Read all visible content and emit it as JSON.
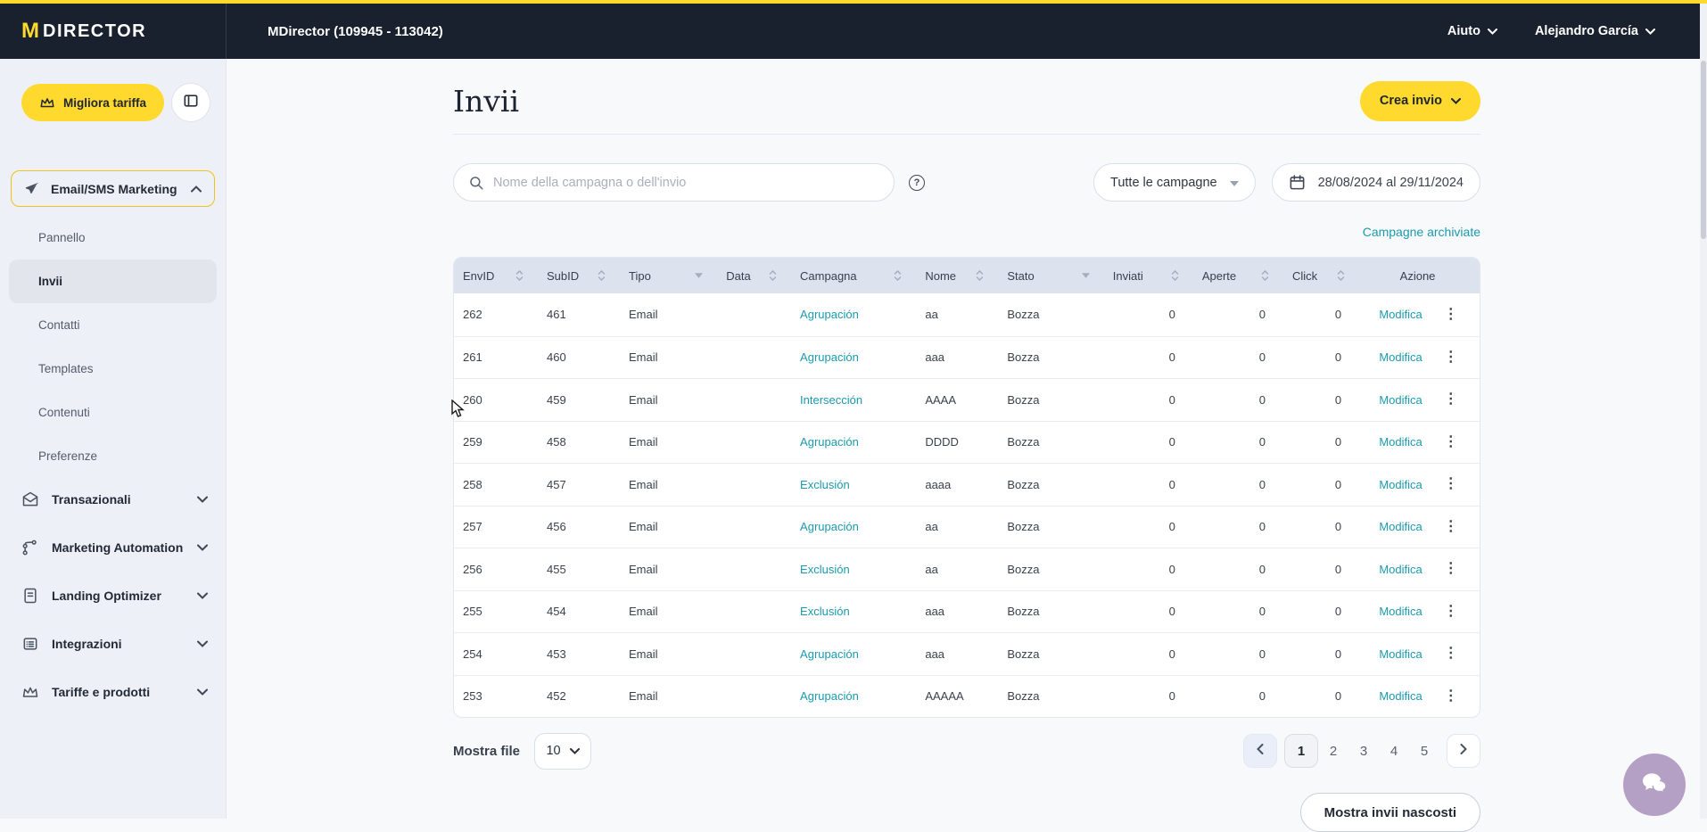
{
  "brand": {
    "logo_m": "M",
    "logo_text": "DIRECTOR"
  },
  "topbar": {
    "account_title": "MDirector (109945 - 113042)",
    "help_label": "Aiuto",
    "user_name": "Alejandro García"
  },
  "sidebar": {
    "upgrade_button": "Migliora tariffa",
    "section_toggle": {
      "label": "Email/SMS Marketing",
      "icon": "paper-plane-icon"
    },
    "items": [
      {
        "label": "Pannello",
        "active": false
      },
      {
        "label": "Invii",
        "active": true
      },
      {
        "label": "Contatti",
        "active": false
      },
      {
        "label": "Templates",
        "active": false
      },
      {
        "label": "Contenuti",
        "active": false
      },
      {
        "label": "Preferenze",
        "active": false
      }
    ],
    "groups": [
      {
        "label": "Transazionali",
        "icon": "envelope-icon"
      },
      {
        "label": "Marketing Automation",
        "icon": "automation-icon"
      },
      {
        "label": "Landing Optimizer",
        "icon": "landing-doc-icon"
      },
      {
        "label": "Integrazioni",
        "icon": "integrations-list-icon"
      },
      {
        "label": "Tariffe e prodotti",
        "icon": "crown-icon"
      }
    ]
  },
  "main": {
    "page_title": "Invii",
    "create_button": "Crea invio",
    "search_placeholder": "Nome della campagna o dell'invio",
    "help_glyph": "?",
    "campaigns_filter": "Tutte le campagne",
    "date_range": "28/08/2024 al  29/11/2024",
    "archived_link": "Campagne archiviate"
  },
  "table": {
    "columns": [
      {
        "label": "EnvID",
        "control": "sort"
      },
      {
        "label": "SubID",
        "control": "sort"
      },
      {
        "label": "Tipo",
        "control": "filter"
      },
      {
        "label": "Data",
        "control": "sort"
      },
      {
        "label": "Campagna",
        "control": "sort"
      },
      {
        "label": "Nome",
        "control": "sort"
      },
      {
        "label": "Stato",
        "control": "filter"
      },
      {
        "label": "Inviati",
        "control": "sort",
        "numeric": true
      },
      {
        "label": "Aperte",
        "control": "sort",
        "numeric": true
      },
      {
        "label": "Click",
        "control": "sort",
        "numeric": true
      },
      {
        "label": "Azione",
        "control": "none",
        "action": true
      }
    ],
    "action_label": "Modifica",
    "rows": [
      {
        "envid": "262",
        "subid": "461",
        "tipo": "Email",
        "data": "",
        "campagna": "Agrupación",
        "nome": "aa",
        "stato": "Bozza",
        "inviati": "0",
        "aperte": "0",
        "click": "0"
      },
      {
        "envid": "261",
        "subid": "460",
        "tipo": "Email",
        "data": "",
        "campagna": "Agrupación",
        "nome": "aaa",
        "stato": "Bozza",
        "inviati": "0",
        "aperte": "0",
        "click": "0"
      },
      {
        "envid": "260",
        "subid": "459",
        "tipo": "Email",
        "data": "",
        "campagna": "Intersección",
        "nome": "AAAA",
        "stato": "Bozza",
        "inviati": "0",
        "aperte": "0",
        "click": "0"
      },
      {
        "envid": "259",
        "subid": "458",
        "tipo": "Email",
        "data": "",
        "campagna": "Agrupación",
        "nome": "DDDD",
        "stato": "Bozza",
        "inviati": "0",
        "aperte": "0",
        "click": "0"
      },
      {
        "envid": "258",
        "subid": "457",
        "tipo": "Email",
        "data": "",
        "campagna": "Exclusión",
        "nome": "aaaa",
        "stato": "Bozza",
        "inviati": "0",
        "aperte": "0",
        "click": "0"
      },
      {
        "envid": "257",
        "subid": "456",
        "tipo": "Email",
        "data": "",
        "campagna": "Agrupación",
        "nome": "aa",
        "stato": "Bozza",
        "inviati": "0",
        "aperte": "0",
        "click": "0"
      },
      {
        "envid": "256",
        "subid": "455",
        "tipo": "Email",
        "data": "",
        "campagna": "Exclusión",
        "nome": "aa",
        "stato": "Bozza",
        "inviati": "0",
        "aperte": "0",
        "click": "0"
      },
      {
        "envid": "255",
        "subid": "454",
        "tipo": "Email",
        "data": "",
        "campagna": "Exclusión",
        "nome": "aaa",
        "stato": "Bozza",
        "inviati": "0",
        "aperte": "0",
        "click": "0"
      },
      {
        "envid": "254",
        "subid": "453",
        "tipo": "Email",
        "data": "",
        "campagna": "Agrupación",
        "nome": "aaa",
        "stato": "Bozza",
        "inviati": "0",
        "aperte": "0",
        "click": "0"
      },
      {
        "envid": "253",
        "subid": "452",
        "tipo": "Email",
        "data": "",
        "campagna": "Agrupación",
        "nome": "AAAAA",
        "stato": "Bozza",
        "inviati": "0",
        "aperte": "0",
        "click": "0"
      }
    ]
  },
  "footer": {
    "page_size_label": "Mostra file",
    "page_size_value": "10",
    "pages": [
      "1",
      "2",
      "3",
      "4",
      "5"
    ],
    "active_page": "1",
    "hidden_sends_button": "Mostra invii nascosti"
  },
  "colors": {
    "brand_yellow": "#FFD92E",
    "topbar_bg": "#19212F",
    "teal_link": "#1B9AAD",
    "table_header_bg": "#DCE2EE",
    "chat_bubble": "#B4A0C4"
  }
}
